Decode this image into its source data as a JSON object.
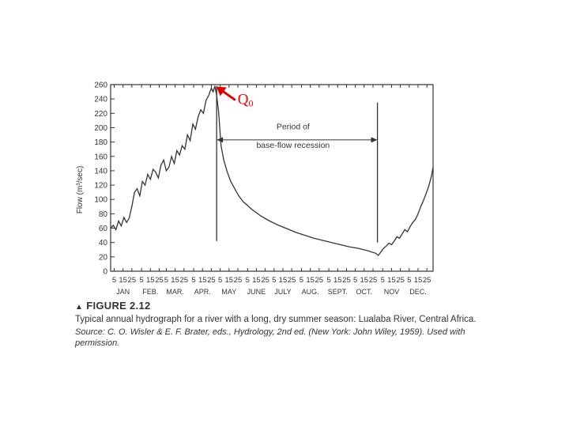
{
  "chart_data": {
    "type": "line",
    "ylabel": "Flow (m³/sec)",
    "ylim": [
      0,
      260
    ],
    "yticks": [
      0,
      20,
      40,
      60,
      80,
      100,
      120,
      140,
      160,
      180,
      200,
      220,
      240,
      260
    ],
    "xlim": [
      0,
      365
    ],
    "day_ticks": [
      "5",
      "15",
      "25"
    ],
    "months": [
      "JAN",
      "FEB.",
      "MAR.",
      "APR.",
      "MAY",
      "JUNE",
      "JULY",
      "AUG.",
      "SEPT.",
      "OCT.",
      "NOV",
      "DEC."
    ],
    "series": [
      {
        "x": [
          0,
          3,
          6,
          9,
          12,
          15,
          18,
          21,
          24,
          27,
          30,
          33,
          36,
          39,
          42,
          45,
          48,
          51,
          54,
          57,
          60,
          63,
          66,
          69,
          72,
          75,
          78,
          81,
          84,
          87,
          90,
          93,
          96,
          99,
          102,
          105,
          108,
          111,
          114,
          116,
          118,
          120,
          122,
          125,
          128,
          132,
          136,
          140,
          145,
          150,
          160,
          170,
          180,
          190,
          200,
          210,
          220,
          230,
          240,
          250,
          260,
          270,
          280,
          290,
          300,
          303,
          306,
          309,
          312,
          315,
          318,
          321,
          324,
          327,
          330,
          333,
          336,
          339,
          342,
          345,
          348,
          351,
          354,
          357,
          360,
          363,
          365
        ],
        "y": [
          60,
          64,
          58,
          70,
          63,
          75,
          68,
          74,
          90,
          110,
          115,
          105,
          125,
          120,
          135,
          128,
          142,
          138,
          130,
          148,
          155,
          140,
          145,
          160,
          150,
          168,
          162,
          175,
          170,
          190,
          182,
          205,
          198,
          215,
          225,
          220,
          238,
          245,
          255,
          250,
          258,
          245,
          225,
          175,
          155,
          138,
          125,
          116,
          105,
          97,
          86,
          77,
          70,
          64,
          59,
          54,
          50,
          46,
          43,
          40,
          37,
          34,
          32,
          29,
          25,
          22,
          27,
          32,
          35,
          39,
          37,
          42,
          48,
          46,
          52,
          58,
          55,
          62,
          68,
          72,
          80,
          90,
          98,
          108,
          118,
          132,
          145
        ]
      }
    ],
    "annotations": [
      {
        "text": "Q0",
        "x": 117,
        "y": 255
      },
      {
        "text": "Period of base-flow recession",
        "x_start": 120,
        "x_end": 302,
        "y": 183
      }
    ]
  },
  "annotation_q0_main": "Q",
  "annotation_q0_sub": "0",
  "annotation_period_line1": "Period of",
  "annotation_period_line2": "base-flow  recession",
  "figure_label": "FIGURE 2.12",
  "figure_caption": "Typical annual hydrograph for a river with a long, dry summer season: Lualaba River, Central Africa.",
  "figure_source": "Source: C. O. Wisler & E. F. Brater, eds., Hydrology, 2nd ed. (New York: John Wiley, 1959). Used with permission.",
  "colors": {
    "line": "#333333",
    "arrow": "#dd0000",
    "q0_text": "#ee0000"
  }
}
